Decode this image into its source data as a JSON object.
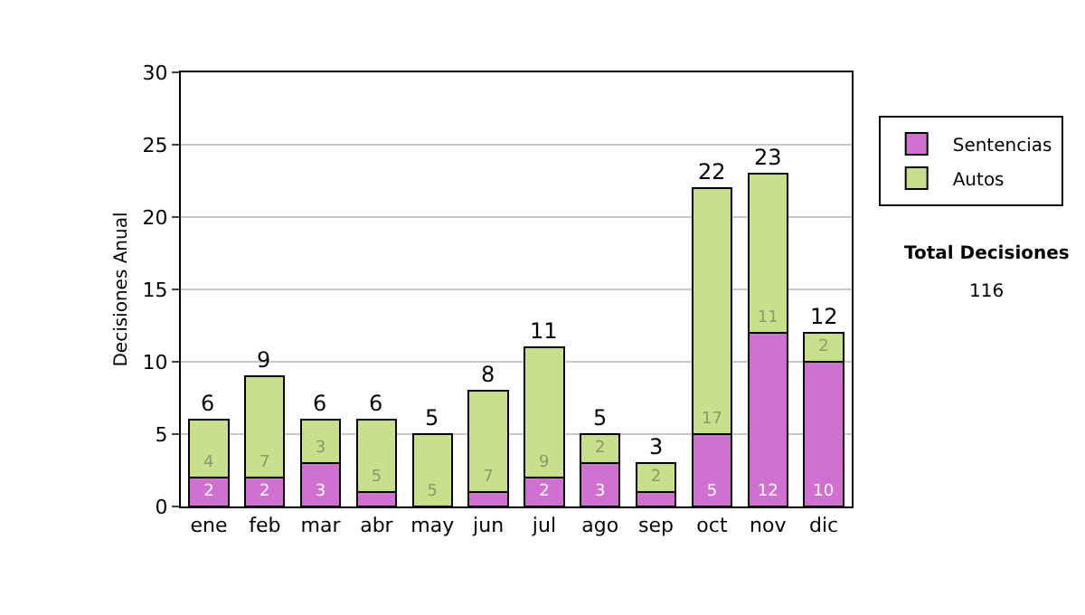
{
  "chart_data": {
    "type": "bar",
    "stacked": true,
    "ylabel": "Decisiones Anual",
    "categories": [
      "ene",
      "feb",
      "mar",
      "abr",
      "may",
      "jun",
      "jul",
      "ago",
      "sep",
      "oct",
      "nov",
      "dic"
    ],
    "series": [
      {
        "name": "Sentencias",
        "color": "#d070d0",
        "values": [
          2,
          2,
          3,
          1,
          0,
          1,
          2,
          3,
          1,
          5,
          12,
          10
        ],
        "value_labels": [
          "2",
          "2",
          "3",
          null,
          null,
          null,
          "2",
          "3",
          null,
          "5",
          "12",
          "10"
        ]
      },
      {
        "name": "Autos",
        "color": "#c8e08c",
        "values": [
          4,
          7,
          3,
          5,
          5,
          7,
          9,
          2,
          2,
          17,
          11,
          2
        ],
        "value_labels": [
          "4",
          "7",
          "3",
          "5",
          "5",
          "7",
          "9",
          "2",
          "2",
          "17",
          "11",
          "2"
        ]
      }
    ],
    "totals": [
      "6",
      "9",
      "6",
      "6",
      "5",
      "8",
      "11",
      "5",
      "3",
      "22",
      "23",
      "12"
    ],
    "ylim": [
      0,
      30
    ],
    "yticks": [
      0,
      5,
      10,
      15,
      20,
      25,
      30
    ],
    "grid": "y",
    "legend": "right",
    "annotations": [
      "Total Decisiones",
      "116"
    ]
  }
}
